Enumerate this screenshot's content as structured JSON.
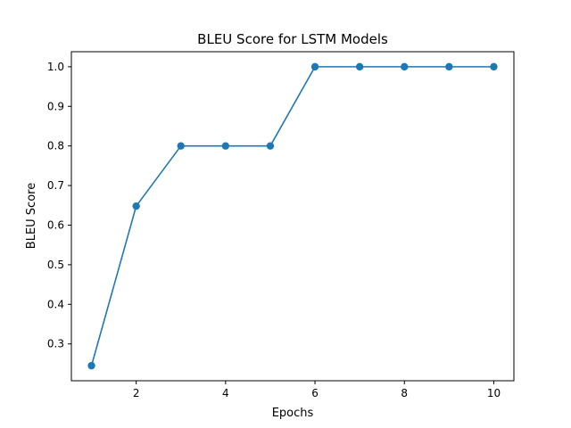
{
  "chart_data": {
    "type": "line",
    "title": "BLEU Score for LSTM Models",
    "xlabel": "Epochs",
    "ylabel": "BLEU Score",
    "x": [
      1,
      2,
      3,
      4,
      5,
      6,
      7,
      8,
      9,
      10
    ],
    "series": [
      {
        "values": [
          0.245,
          0.648,
          0.8,
          0.8,
          0.8,
          1.0,
          1.0,
          1.0,
          1.0,
          1.0
        ],
        "color": "#1f77b4",
        "marker": "circle"
      }
    ],
    "xlim": [
      0.55,
      10.45
    ],
    "ylim": [
      0.207,
      1.038
    ],
    "xticks": [
      2,
      4,
      6,
      8,
      10
    ],
    "xtick_labels": [
      "2",
      "4",
      "6",
      "8",
      "10"
    ],
    "yticks": [
      0.3,
      0.4,
      0.5,
      0.6,
      0.7,
      0.8,
      0.9,
      1.0
    ],
    "ytick_labels": [
      "0.3",
      "0.4",
      "0.5",
      "0.6",
      "0.7",
      "0.8",
      "0.9",
      "1.0"
    ],
    "grid": false,
    "legend": false
  }
}
